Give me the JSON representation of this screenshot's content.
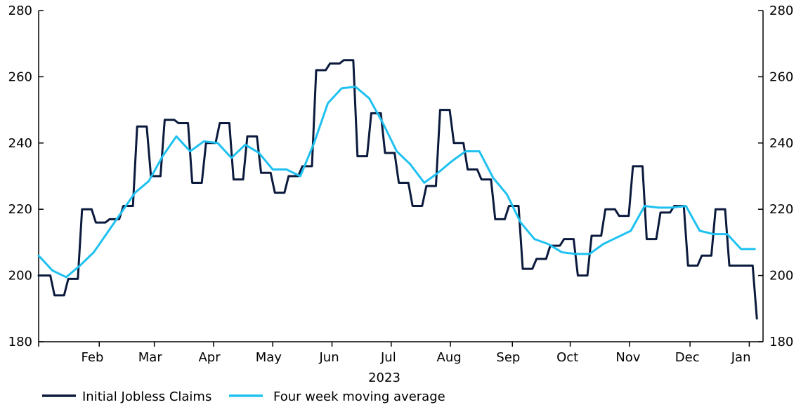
{
  "chart_data": {
    "type": "line",
    "title": "",
    "xlabel": "2023",
    "ylabel": "",
    "ylim": [
      180,
      280
    ],
    "y_ticks": [
      180,
      200,
      220,
      240,
      260,
      280
    ],
    "y_tick_labels": [
      "180",
      "200",
      "220",
      "240",
      "260",
      "280"
    ],
    "x_range_weeks": [
      0,
      52.6
    ],
    "month_tick_positions": [
      0,
      4.4,
      8.4,
      12.7,
      17.0,
      21.3,
      25.6,
      29.9,
      34.4,
      38.6,
      42.9,
      47.3,
      51.6
    ],
    "month_labels": [
      {
        "label": "Feb",
        "week": 3.9
      },
      {
        "label": "Mar",
        "week": 8.1
      },
      {
        "label": "Apr",
        "week": 12.4
      },
      {
        "label": "May",
        "week": 16.7
      },
      {
        "label": "Jun",
        "week": 21.1
      },
      {
        "label": "Jul",
        "week": 25.4
      },
      {
        "label": "Aug",
        "week": 29.8
      },
      {
        "label": "Sep",
        "week": 34.1
      },
      {
        "label": "Oct",
        "week": 38.4
      },
      {
        "label": "Nov",
        "week": 42.8
      },
      {
        "label": "Dec",
        "week": 47.1
      },
      {
        "label": "Jan",
        "week": 51.0
      }
    ],
    "grid": false,
    "legend_placement": "bottom-left",
    "series": [
      {
        "name": "Initial Jobless Claims",
        "color": "#0b1a3d",
        "style": "step",
        "x": [
          0,
          1,
          2,
          3,
          4,
          5,
          6,
          7,
          8,
          9,
          10,
          11,
          12,
          13,
          14,
          15,
          16,
          17,
          18,
          19,
          20,
          21,
          22,
          23,
          24,
          25,
          26,
          27,
          28,
          29,
          30,
          31,
          32,
          33,
          34,
          35,
          36,
          37,
          38,
          39,
          40,
          41,
          42,
          43,
          44,
          45,
          46,
          47,
          48,
          49,
          50,
          51,
          52
        ],
        "values": [
          200,
          194,
          199,
          220,
          216,
          217,
          221,
          245,
          230,
          247,
          246,
          228,
          240,
          246,
          229,
          242,
          231,
          225,
          230,
          233,
          262,
          264,
          265,
          236,
          249,
          237,
          228,
          221,
          227,
          250,
          240,
          232,
          229,
          217,
          221,
          202,
          205,
          209,
          211,
          200,
          212,
          220,
          218,
          233,
          211,
          219,
          221,
          203,
          206,
          220,
          203,
          203,
          187
        ]
      },
      {
        "name": "Four week moving average",
        "color": "#1ec1f0",
        "style": "line",
        "x": [
          0,
          1,
          2,
          3,
          4,
          5,
          6,
          7,
          8,
          9,
          10,
          11,
          12,
          13,
          14,
          15,
          16,
          17,
          18,
          19,
          20,
          21,
          22,
          23,
          24,
          25,
          26,
          27,
          28,
          29,
          30,
          31,
          32,
          33,
          34,
          35,
          36,
          37,
          38,
          39,
          40,
          41,
          42,
          43,
          44,
          45,
          46,
          47,
          48,
          49,
          50,
          51,
          52
        ],
        "values": [
          206,
          201.5,
          199.5,
          203,
          207,
          213,
          219,
          225,
          228.5,
          236,
          242,
          237.5,
          240.5,
          240,
          235.5,
          239.5,
          237,
          232,
          232,
          230,
          240,
          252,
          256.5,
          257,
          253.5,
          246,
          237.5,
          233.5,
          228,
          231,
          234.5,
          237.5,
          237.5,
          229.5,
          224.5,
          216,
          211,
          209.5,
          207,
          206.5,
          206.5,
          209.5,
          211.5,
          213.5,
          221,
          220.5,
          220.5,
          221,
          213.5,
          212.5,
          212.5,
          208,
          208
        ]
      }
    ]
  }
}
